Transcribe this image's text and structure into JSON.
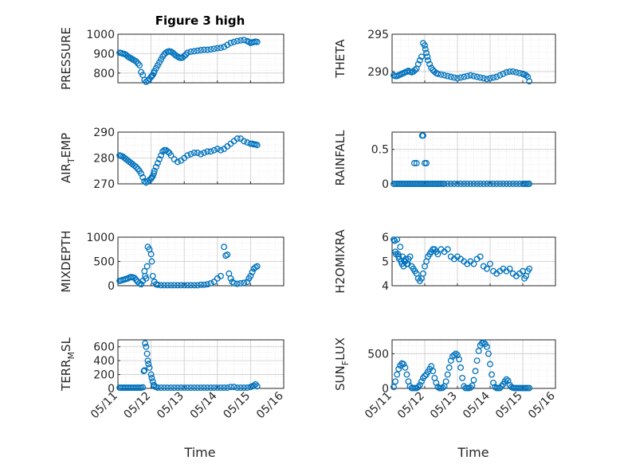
{
  "figure": {
    "title": "Figure 3 high",
    "xlabel": "Time",
    "marker_color": "#0072bd",
    "grid_color": "#cccccc",
    "axis_color": "#262626"
  },
  "chart_data": [
    {
      "type": "scatter",
      "ylabel": "PRESSURE",
      "title": "Figure 3 high",
      "xlim": [
        "05/11",
        "05/16"
      ],
      "xticks": [],
      "ylim": [
        750,
        1000
      ],
      "yticks": [
        "800",
        "900",
        "1000"
      ],
      "grid": true,
      "x": [
        0.05,
        0.1,
        0.15,
        0.2,
        0.25,
        0.3,
        0.35,
        0.4,
        0.45,
        0.5,
        0.55,
        0.6,
        0.65,
        0.7,
        0.75,
        0.8,
        0.85,
        0.9,
        0.95,
        1.0,
        1.02,
        1.05,
        1.08,
        1.1,
        1.15,
        1.2,
        1.25,
        1.3,
        1.35,
        1.4,
        1.45,
        1.5,
        1.55,
        1.6,
        1.65,
        1.7,
        1.75,
        1.8,
        1.85,
        1.9,
        1.95,
        2.0,
        2.05,
        2.1,
        2.2,
        2.3,
        2.4,
        2.5,
        2.6,
        2.7,
        2.8,
        2.9,
        3.0,
        3.1,
        3.2,
        3.3,
        3.4,
        3.5,
        3.6,
        3.7,
        3.8,
        3.9,
        3.95,
        4.0,
        4.05,
        4.1,
        4.15,
        4.2
      ],
      "y": [
        905,
        903,
        900,
        898,
        893,
        885,
        880,
        875,
        870,
        865,
        860,
        850,
        840,
        805,
        790,
        765,
        755,
        760,
        770,
        780,
        785,
        790,
        800,
        810,
        825,
        840,
        855,
        870,
        885,
        897,
        905,
        910,
        912,
        910,
        905,
        897,
        890,
        885,
        880,
        878,
        880,
        888,
        895,
        905,
        910,
        912,
        915,
        918,
        920,
        920,
        922,
        925,
        928,
        930,
        935,
        945,
        955,
        960,
        965,
        968,
        970,
        965,
        960,
        955,
        958,
        960,
        962,
        960
      ]
    },
    {
      "type": "scatter",
      "ylabel": "THETA",
      "title": "",
      "xlim": [
        "05/11",
        "05/16"
      ],
      "xticks": [],
      "ylim": [
        288.5,
        295
      ],
      "yticks": [
        "290",
        "295"
      ],
      "grid": true,
      "x": [
        0.05,
        0.1,
        0.15,
        0.2,
        0.25,
        0.3,
        0.35,
        0.4,
        0.45,
        0.5,
        0.55,
        0.6,
        0.65,
        0.7,
        0.75,
        0.8,
        0.85,
        0.9,
        0.95,
        1.0,
        1.02,
        1.05,
        1.08,
        1.1,
        1.15,
        1.2,
        1.25,
        1.3,
        1.35,
        1.4,
        1.5,
        1.6,
        1.7,
        1.8,
        1.9,
        2.0,
        2.1,
        2.2,
        2.3,
        2.4,
        2.5,
        2.6,
        2.7,
        2.8,
        2.9,
        3.0,
        3.1,
        3.2,
        3.3,
        3.4,
        3.5,
        3.6,
        3.7,
        3.8,
        3.9,
        4.0,
        4.05,
        4.1,
        4.15,
        4.2
      ],
      "y": [
        289.5,
        289.4,
        289.4,
        289.5,
        289.6,
        289.7,
        289.8,
        289.9,
        290.0,
        290.1,
        290.0,
        289.9,
        290.0,
        290.2,
        290.4,
        291.0,
        291.5,
        292.0,
        293.8,
        293.5,
        293.0,
        292.5,
        292.0,
        291.5,
        291.0,
        290.5,
        290.2,
        290.0,
        289.8,
        289.7,
        289.6,
        289.5,
        289.4,
        289.3,
        289.2,
        289.1,
        289.2,
        289.3,
        289.4,
        289.5,
        289.4,
        289.3,
        289.2,
        289.1,
        289.0,
        289.1,
        289.2,
        289.3,
        289.5,
        289.7,
        289.9,
        290.0,
        290.0,
        289.9,
        289.8,
        289.7,
        289.6,
        289.5,
        289.3,
        288.7
      ]
    },
    {
      "type": "scatter",
      "ylabel": "AIR_TEMP",
      "title": "",
      "xlim": [
        "05/11",
        "05/16"
      ],
      "xticks": [],
      "ylim": [
        270,
        290
      ],
      "yticks": [
        "270",
        "280",
        "290"
      ],
      "grid": true,
      "x": [
        0.05,
        0.1,
        0.15,
        0.2,
        0.25,
        0.3,
        0.35,
        0.4,
        0.45,
        0.5,
        0.55,
        0.6,
        0.65,
        0.7,
        0.75,
        0.8,
        0.85,
        0.9,
        0.95,
        1.0,
        1.02,
        1.05,
        1.08,
        1.1,
        1.15,
        1.2,
        1.25,
        1.3,
        1.35,
        1.4,
        1.45,
        1.5,
        1.55,
        1.6,
        1.7,
        1.8,
        1.9,
        2.0,
        2.1,
        2.2,
        2.3,
        2.4,
        2.5,
        2.6,
        2.7,
        2.8,
        2.9,
        3.0,
        3.1,
        3.2,
        3.3,
        3.4,
        3.5,
        3.6,
        3.7,
        3.8,
        3.9,
        4.0,
        4.05,
        4.1,
        4.15,
        4.2
      ],
      "y": [
        281.0,
        280.8,
        280.5,
        280.0,
        279.5,
        279.0,
        278.5,
        278.0,
        277.5,
        277.0,
        276.5,
        275.8,
        275.0,
        274.0,
        272.5,
        271.0,
        270.5,
        271.0,
        271.5,
        272.0,
        272.5,
        273.0,
        274.0,
        275.0,
        276.5,
        278.0,
        279.5,
        281.0,
        282.5,
        283.0,
        283.0,
        282.5,
        282.0,
        281.0,
        279.5,
        278.5,
        279.0,
        280.0,
        281.0,
        281.5,
        282.0,
        282.0,
        281.5,
        282.0,
        282.5,
        282.5,
        283.0,
        283.5,
        283.0,
        283.5,
        284.5,
        285.5,
        286.5,
        287.5,
        287.5,
        286.5,
        286.0,
        285.5,
        285.5,
        285.3,
        285.2,
        285.0
      ]
    },
    {
      "type": "scatter",
      "ylabel": "RAINFALL",
      "title": "",
      "xlim": [
        "05/11",
        "05/16"
      ],
      "xticks": [],
      "ylim": [
        0,
        0.75
      ],
      "yticks": [
        "0",
        "0.5"
      ],
      "grid": true,
      "x": [
        0.05,
        0.1,
        0.15,
        0.2,
        0.25,
        0.3,
        0.35,
        0.4,
        0.45,
        0.5,
        0.55,
        0.6,
        0.65,
        0.7,
        0.75,
        0.8,
        0.85,
        0.9,
        0.95,
        1.0,
        1.05,
        1.1,
        1.15,
        1.2,
        1.25,
        1.3,
        1.35,
        1.4,
        1.45,
        1.5,
        1.55,
        1.6,
        1.7,
        1.8,
        1.9,
        2.0,
        2.1,
        2.2,
        2.3,
        2.4,
        2.5,
        2.6,
        2.7,
        2.8,
        2.9,
        3.0,
        3.1,
        3.2,
        3.3,
        3.4,
        3.5,
        3.6,
        3.7,
        3.8,
        3.9,
        4.0,
        4.05,
        4.1,
        4.15,
        4.2,
        0.68,
        0.75,
        0.92,
        0.95,
        1.0,
        1.05
      ],
      "y": [
        0,
        0,
        0,
        0,
        0,
        0,
        0,
        0,
        0,
        0,
        0,
        0,
        0,
        0,
        0,
        0,
        0,
        0,
        0,
        0,
        0,
        0,
        0,
        0,
        0,
        0,
        0,
        0,
        0,
        0,
        0,
        0,
        0,
        0,
        0,
        0,
        0,
        0,
        0,
        0,
        0,
        0,
        0,
        0,
        0,
        0,
        0,
        0,
        0,
        0,
        0,
        0,
        0,
        0,
        0,
        0,
        0,
        0,
        0,
        0,
        0.3,
        0.3,
        0.7,
        0.7,
        0.3,
        0.3
      ]
    },
    {
      "type": "scatter",
      "ylabel": "MIXDEPTH",
      "title": "",
      "xlim": [
        "05/11",
        "05/16"
      ],
      "xticks": [],
      "ylim": [
        0,
        1000
      ],
      "yticks": [
        "0",
        "500",
        "1000"
      ],
      "grid": true,
      "x": [
        0.05,
        0.1,
        0.15,
        0.2,
        0.25,
        0.3,
        0.35,
        0.4,
        0.45,
        0.5,
        0.55,
        0.6,
        0.65,
        0.7,
        0.75,
        0.8,
        0.82,
        0.85,
        0.88,
        0.9,
        0.95,
        1.0,
        1.02,
        1.05,
        1.1,
        1.15,
        1.2,
        1.3,
        1.4,
        1.5,
        1.6,
        1.7,
        1.8,
        1.9,
        2.0,
        2.1,
        2.2,
        2.3,
        2.4,
        2.5,
        2.6,
        2.7,
        2.8,
        2.9,
        3.0,
        3.1,
        3.2,
        3.25,
        3.3,
        3.35,
        3.4,
        3.45,
        3.5,
        3.6,
        3.7,
        3.8,
        3.9,
        3.95,
        4.0,
        4.05,
        4.1,
        4.15,
        4.2
      ],
      "y": [
        100,
        110,
        120,
        130,
        140,
        150,
        170,
        180,
        170,
        160,
        120,
        80,
        50,
        30,
        100,
        300,
        200,
        150,
        400,
        800,
        750,
        650,
        500,
        200,
        80,
        30,
        20,
        10,
        10,
        10,
        10,
        10,
        10,
        10,
        10,
        10,
        10,
        10,
        10,
        20,
        20,
        30,
        50,
        80,
        150,
        200,
        800,
        620,
        640,
        250,
        150,
        80,
        50,
        40,
        50,
        60,
        80,
        150,
        200,
        280,
        350,
        380,
        400
      ]
    },
    {
      "type": "scatter",
      "ylabel": "H2OMIXRA",
      "title": "",
      "xlim": [
        "05/11",
        "05/16"
      ],
      "xticks": [],
      "ylim": [
        4,
        6
      ],
      "yticks": [
        "4",
        "5",
        "6"
      ],
      "grid": true,
      "x": [
        0.05,
        0.08,
        0.1,
        0.12,
        0.15,
        0.18,
        0.2,
        0.22,
        0.25,
        0.28,
        0.3,
        0.32,
        0.35,
        0.38,
        0.4,
        0.42,
        0.45,
        0.48,
        0.5,
        0.55,
        0.6,
        0.65,
        0.7,
        0.75,
        0.8,
        0.85,
        0.9,
        0.95,
        1.0,
        1.05,
        1.1,
        1.15,
        1.2,
        1.25,
        1.3,
        1.35,
        1.4,
        1.5,
        1.6,
        1.7,
        1.8,
        1.9,
        2.0,
        2.1,
        2.2,
        2.3,
        2.4,
        2.5,
        2.6,
        2.7,
        2.8,
        2.9,
        3.0,
        3.1,
        3.2,
        3.3,
        3.4,
        3.5,
        3.6,
        3.7,
        3.8,
        3.9,
        4.0,
        4.05,
        4.1,
        4.15,
        4.2
      ],
      "y": [
        5.9,
        5.85,
        5.4,
        5.3,
        5.9,
        5.3,
        5.2,
        5.1,
        5.6,
        5.0,
        4.9,
        5.2,
        4.8,
        5.0,
        5.0,
        5.1,
        4.9,
        4.9,
        5.1,
        5.2,
        4.8,
        4.7,
        4.6,
        4.5,
        4.3,
        4.2,
        4.3,
        4.5,
        4.8,
        5.0,
        5.2,
        5.3,
        5.4,
        5.5,
        5.5,
        5.4,
        5.3,
        5.5,
        5.4,
        5.5,
        5.2,
        5.1,
        5.2,
        5.1,
        5.0,
        4.9,
        5.0,
        4.9,
        5.1,
        5.2,
        4.8,
        4.7,
        4.9,
        4.6,
        4.5,
        4.6,
        4.7,
        4.6,
        4.7,
        4.5,
        4.4,
        4.5,
        4.6,
        4.3,
        4.4,
        4.6,
        4.7
      ]
    },
    {
      "type": "scatter",
      "ylabel": "TERR_MSL",
      "title": "",
      "xlim": [
        "05/11",
        "05/16"
      ],
      "xticks": [
        "05/11",
        "05/12",
        "05/13",
        "05/14",
        "05/15",
        "05/16"
      ],
      "ylim": [
        0,
        700
      ],
      "yticks": [
        "0",
        "200",
        "400",
        "600"
      ],
      "grid": true,
      "x": [
        0.05,
        0.1,
        0.15,
        0.2,
        0.25,
        0.3,
        0.35,
        0.4,
        0.45,
        0.5,
        0.55,
        0.6,
        0.65,
        0.7,
        0.75,
        0.78,
        0.8,
        0.82,
        0.85,
        0.88,
        0.9,
        0.92,
        0.95,
        1.0,
        1.02,
        1.05,
        1.08,
        1.1,
        1.15,
        1.2,
        1.3,
        1.4,
        1.5,
        1.6,
        1.7,
        1.8,
        1.9,
        2.0,
        2.1,
        2.2,
        2.3,
        2.4,
        2.5,
        2.6,
        2.7,
        2.8,
        2.9,
        3.0,
        3.1,
        3.2,
        3.3,
        3.4,
        3.5,
        3.6,
        3.7,
        3.8,
        3.9,
        4.0,
        4.05,
        4.1,
        4.15,
        4.2
      ],
      "y": [
        10,
        10,
        10,
        10,
        10,
        10,
        10,
        10,
        10,
        10,
        10,
        10,
        10,
        10,
        15,
        250,
        260,
        650,
        600,
        500,
        400,
        350,
        300,
        200,
        150,
        100,
        50,
        30,
        20,
        10,
        10,
        10,
        10,
        10,
        10,
        10,
        10,
        10,
        10,
        10,
        10,
        10,
        10,
        10,
        10,
        10,
        10,
        10,
        10,
        10,
        10,
        20,
        20,
        10,
        10,
        10,
        10,
        20,
        30,
        40,
        60,
        30
      ]
    },
    {
      "type": "scatter",
      "ylabel": "SUN_FLUX",
      "title": "",
      "xlim": [
        "05/11",
        "05/16"
      ],
      "xticks": [
        "05/11",
        "05/12",
        "05/13",
        "05/14",
        "05/15",
        "05/16"
      ],
      "ylim": [
        0,
        700
      ],
      "yticks": [
        "0",
        "500"
      ],
      "grid": true,
      "x": [
        0.05,
        0.1,
        0.15,
        0.2,
        0.25,
        0.3,
        0.35,
        0.4,
        0.45,
        0.5,
        0.55,
        0.6,
        0.65,
        0.7,
        0.75,
        0.8,
        0.85,
        0.9,
        0.95,
        1.0,
        1.05,
        1.1,
        1.15,
        1.2,
        1.25,
        1.3,
        1.35,
        1.4,
        1.45,
        1.5,
        1.55,
        1.6,
        1.65,
        1.7,
        1.75,
        1.8,
        1.85,
        1.9,
        1.95,
        2.0,
        2.05,
        2.1,
        2.15,
        2.2,
        2.25,
        2.3,
        2.35,
        2.4,
        2.45,
        2.5,
        2.55,
        2.6,
        2.65,
        2.7,
        2.75,
        2.8,
        2.85,
        2.9,
        2.95,
        3.0,
        3.05,
        3.1,
        3.15,
        3.2,
        3.25,
        3.3,
        3.35,
        3.4,
        3.45,
        3.5,
        3.55,
        3.6,
        3.65,
        3.7,
        3.75,
        3.8,
        3.85,
        3.9,
        3.95,
        4.0,
        4.05,
        4.1,
        4.15,
        4.2
      ],
      "y": [
        20,
        100,
        200,
        280,
        330,
        360,
        350,
        300,
        200,
        100,
        30,
        5,
        5,
        5,
        5,
        20,
        50,
        100,
        150,
        180,
        200,
        240,
        280,
        320,
        250,
        150,
        80,
        20,
        5,
        5,
        10,
        30,
        100,
        200,
        300,
        400,
        460,
        480,
        500,
        480,
        420,
        300,
        150,
        30,
        5,
        5,
        5,
        10,
        40,
        120,
        250,
        400,
        540,
        620,
        650,
        660,
        640,
        600,
        500,
        350,
        200,
        80,
        20,
        5,
        5,
        5,
        30,
        60,
        100,
        130,
        110,
        50,
        20,
        10,
        5,
        5,
        5,
        5,
        5,
        5,
        5,
        5,
        5,
        5
      ]
    }
  ]
}
